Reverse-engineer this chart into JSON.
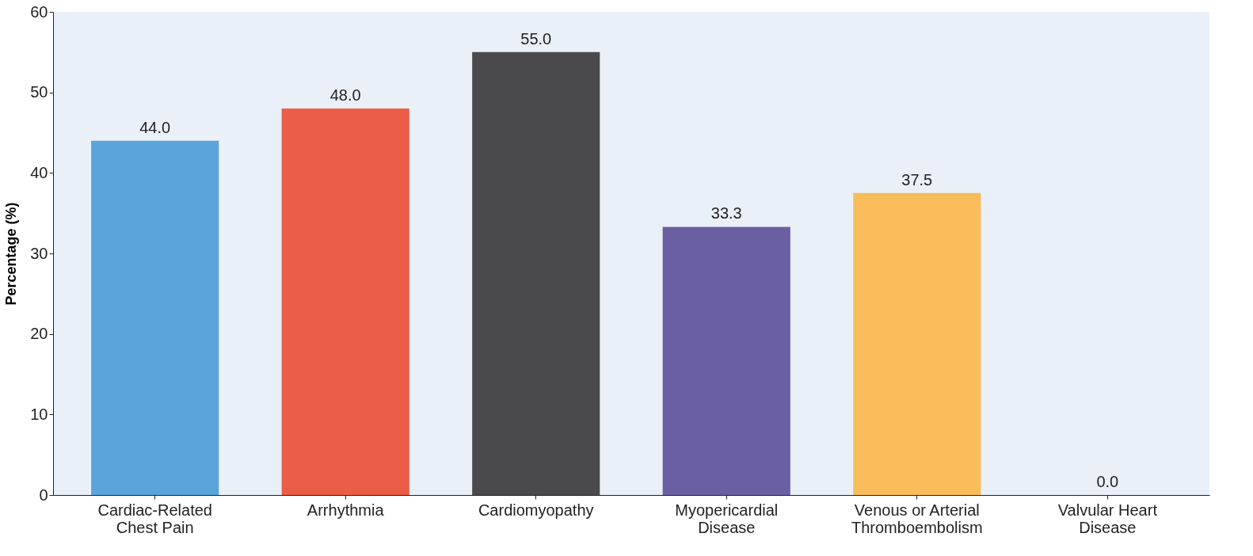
{
  "chart_data": {
    "type": "bar",
    "ylabel": "Percentage (%)",
    "categories": [
      "Cardiac-Related\nChest Pain",
      "Arrhythmia",
      "Cardiomyopathy",
      "Myopericardial\nDisease",
      "Venous or Arterial\nThromboembolism",
      "Valvular Heart\nDisease"
    ],
    "values": [
      44.0,
      48.0,
      55.0,
      33.3,
      37.5,
      0.0
    ],
    "colors": [
      "#5ba4db",
      "#ec5d47",
      "#4a4a4c",
      "#6a5fa1",
      "#f8bd5a",
      "#9a9a9a"
    ],
    "ylim": [
      0,
      60
    ],
    "yticks": [
      0,
      10,
      20,
      30,
      40,
      50,
      60
    ],
    "value_labels": [
      "44.0",
      "48.0",
      "55.0",
      "33.3",
      "37.5",
      "0.0"
    ],
    "grid": false
  }
}
